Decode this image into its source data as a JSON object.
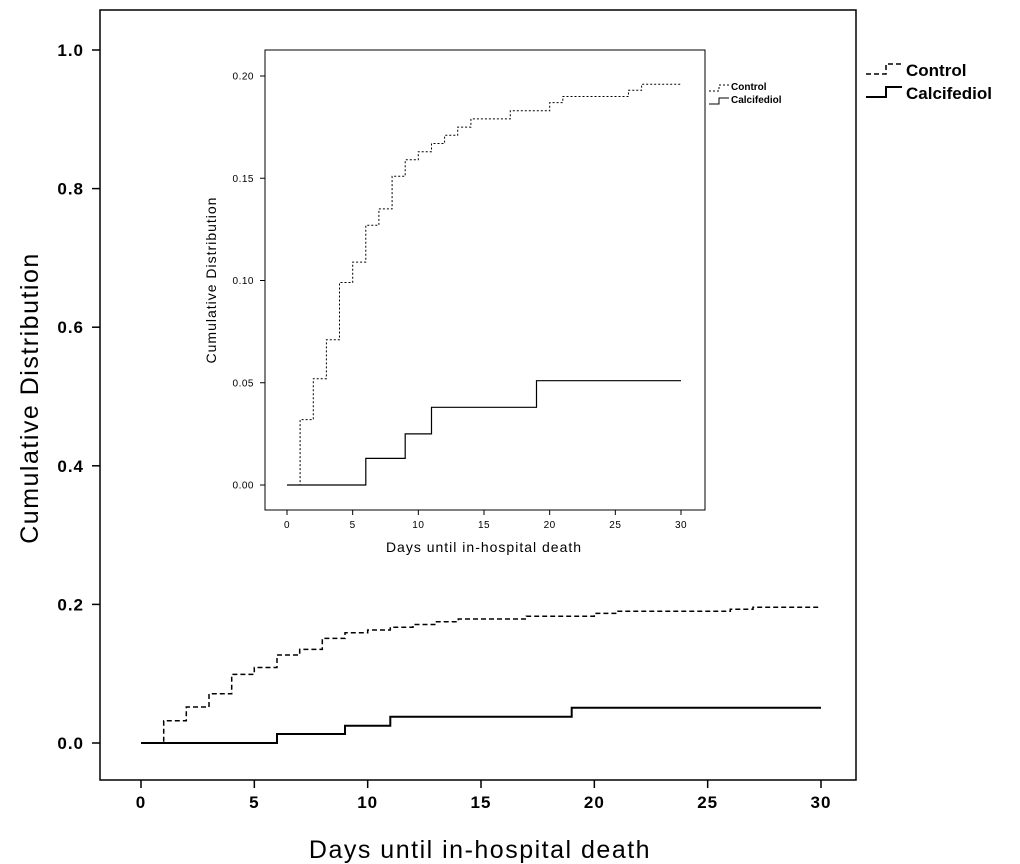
{
  "chart_data": [
    {
      "type": "line",
      "chart_style": "step (cumulative incidence)",
      "title": "",
      "xlabel": "Days until in-hospital death",
      "ylabel": "Cumulative Distribution",
      "xlim": [
        0,
        30
      ],
      "ylim": [
        0.0,
        1.0
      ],
      "xticks": [
        0,
        5,
        10,
        15,
        20,
        25,
        30
      ],
      "xtick_labels": [
        "0",
        "5",
        "10",
        "15",
        "20",
        "25",
        "30"
      ],
      "yticks": [
        0.0,
        0.2,
        0.4,
        0.6,
        0.8,
        1.0
      ],
      "ytick_labels": [
        "0.0",
        "0.2",
        "0.4",
        "0.6",
        "0.8",
        "1.0"
      ],
      "grid": false,
      "legend_position": "right, outside plot area",
      "series": [
        {
          "name": "Control",
          "line_style": "dashed",
          "color": "#000000",
          "points": [
            [
              0,
              0.0
            ],
            [
              1,
              0.032
            ],
            [
              2,
              0.052
            ],
            [
              3,
              0.071
            ],
            [
              4,
              0.099
            ],
            [
              5,
              0.109
            ],
            [
              6,
              0.127
            ],
            [
              7,
              0.135
            ],
            [
              8,
              0.151
            ],
            [
              9,
              0.159
            ],
            [
              10,
              0.163
            ],
            [
              11,
              0.167
            ],
            [
              12,
              0.171
            ],
            [
              13,
              0.175
            ],
            [
              14,
              0.179
            ],
            [
              17,
              0.183
            ],
            [
              20,
              0.187
            ],
            [
              21,
              0.19
            ],
            [
              26,
              0.193
            ],
            [
              27,
              0.196
            ],
            [
              30,
              0.196
            ]
          ]
        },
        {
          "name": "Calcifediol",
          "line_style": "solid",
          "color": "#000000",
          "points": [
            [
              0,
              0.0
            ],
            [
              6,
              0.013
            ],
            [
              9,
              0.025
            ],
            [
              11,
              0.038
            ],
            [
              19,
              0.051
            ],
            [
              30,
              0.051
            ]
          ]
        }
      ]
    },
    {
      "type": "line",
      "chart_style": "step (cumulative incidence), inset zoom",
      "title": "",
      "xlabel": "Days until in-hospital death",
      "ylabel": "Cumulative Distribution",
      "xlim": [
        0,
        30
      ],
      "ylim": [
        0.0,
        0.2
      ],
      "xticks": [
        0,
        5,
        10,
        15,
        20,
        25,
        30
      ],
      "xtick_labels": [
        "0",
        "5",
        "10",
        "15",
        "20",
        "25",
        "30"
      ],
      "yticks": [
        0.0,
        0.05,
        0.1,
        0.15,
        0.2
      ],
      "ytick_labels": [
        "0.00",
        "0.05",
        "0.10",
        "0.15",
        "0.20"
      ],
      "grid": false,
      "legend_position": "right, outside plot area",
      "series": [
        {
          "name": "Control",
          "line_style": "dashed",
          "color": "#000000",
          "points": [
            [
              0,
              0.0
            ],
            [
              1,
              0.032
            ],
            [
              2,
              0.052
            ],
            [
              3,
              0.071
            ],
            [
              4,
              0.099
            ],
            [
              5,
              0.109
            ],
            [
              6,
              0.127
            ],
            [
              7,
              0.135
            ],
            [
              8,
              0.151
            ],
            [
              9,
              0.159
            ],
            [
              10,
              0.163
            ],
            [
              11,
              0.167
            ],
            [
              12,
              0.171
            ],
            [
              13,
              0.175
            ],
            [
              14,
              0.179
            ],
            [
              17,
              0.183
            ],
            [
              20,
              0.187
            ],
            [
              21,
              0.19
            ],
            [
              26,
              0.193
            ],
            [
              27,
              0.196
            ],
            [
              30,
              0.196
            ]
          ]
        },
        {
          "name": "Calcifediol",
          "line_style": "solid",
          "color": "#000000",
          "points": [
            [
              0,
              0.0
            ],
            [
              6,
              0.013
            ],
            [
              9,
              0.025
            ],
            [
              11,
              0.038
            ],
            [
              19,
              0.051
            ],
            [
              30,
              0.051
            ]
          ]
        }
      ]
    }
  ]
}
